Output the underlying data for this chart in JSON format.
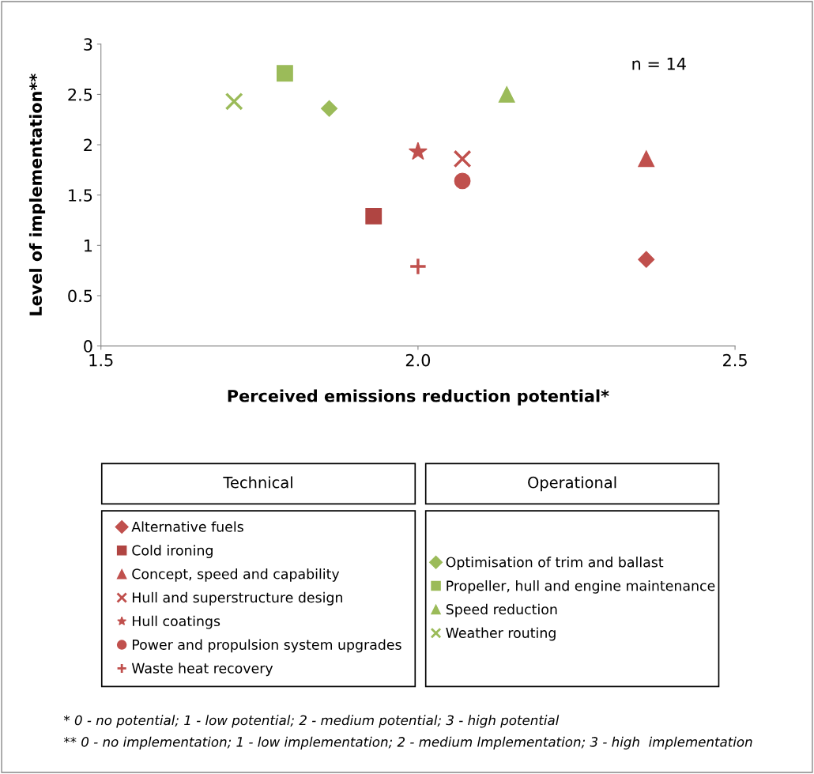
{
  "chart_data": {
    "type": "scatter",
    "xlabel": "Perceived emissions reduction potential*",
    "ylabel": "Level of implementation**",
    "xlim": [
      1.5,
      2.5
    ],
    "xticks": [
      1.5,
      {
        "value": 2,
        "label": "2.0"
      },
      2.5
    ],
    "ylim": [
      0,
      3
    ],
    "yticks": [
      0,
      0.5,
      1,
      1.5,
      2,
      2.5,
      3
    ],
    "grid": false,
    "legend": "bottom",
    "annotations": [
      "n = 14",
      "Technical",
      "Operational",
      "* 0 - no potential; 1 - low potential; 2 - medium potential; 3 - high potential",
      "** 0 - no implementation; 1 - low implementation; 2 - medium lmplementation; 3 - high  implementation"
    ],
    "series": [
      {
        "name": "Alternative fuels",
        "color": "#c0504d",
        "marker": "diamond",
        "x": [
          2.36
        ],
        "values": [
          0.86
        ]
      },
      {
        "name": "Cold ironing",
        "color": "#b04542",
        "marker": "square",
        "x": [
          1.93
        ],
        "values": [
          1.29
        ]
      },
      {
        "name": "Concept, speed and capability",
        "color": "#c0504d",
        "marker": "triangle",
        "x": [
          2.36
        ],
        "values": [
          1.86
        ]
      },
      {
        "name": "Hull and superstructure design",
        "color": "#c0504d",
        "marker": "cross",
        "x": [
          2.07
        ],
        "values": [
          1.86
        ]
      },
      {
        "name": "Hull coatings",
        "color": "#c0504d",
        "marker": "star",
        "x": [
          2.0
        ],
        "values": [
          1.93
        ]
      },
      {
        "name": "Power and propulsion system upgrades",
        "color": "#c0504d",
        "marker": "circle",
        "x": [
          2.07
        ],
        "values": [
          1.64
        ]
      },
      {
        "name": "Waste heat recovery",
        "color": "#c0504d",
        "marker": "plus",
        "x": [
          2.0
        ],
        "values": [
          0.79
        ]
      },
      {
        "name": "Optimisation of trim and ballast",
        "color": "#9bbb59",
        "marker": "diamond",
        "x": [
          1.86
        ],
        "values": [
          2.36
        ]
      },
      {
        "name": "Propeller, hull and engine maintenance",
        "color": "#9bbb59",
        "marker": "square",
        "x": [
          1.79
        ],
        "values": [
          2.71
        ]
      },
      {
        "name": "Speed reduction",
        "color": "#9bbb59",
        "marker": "triangle",
        "x": [
          2.14
        ],
        "values": [
          2.5
        ]
      },
      {
        "name": "Weather routing",
        "color": "#9bbb59",
        "marker": "cross",
        "x": [
          1.71
        ],
        "values": [
          2.43
        ]
      }
    ]
  }
}
